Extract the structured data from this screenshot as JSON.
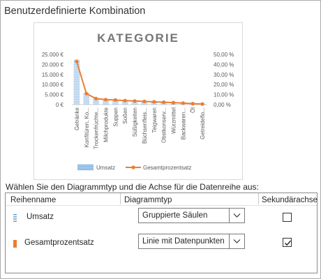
{
  "dialog": {
    "title": "Benutzerdefinierte Kombination",
    "prompt": "Wählen Sie den Diagrammtyp und die Achse für die Datenreihe aus:"
  },
  "table": {
    "headers": {
      "name": "Reihenname",
      "type": "Diagrammtyp",
      "secondary": "Sekundärachse"
    },
    "rows": [
      {
        "name": "Umsatz",
        "chart_type": "Gruppierte Säulen",
        "secondary_axis": false,
        "color": "#5b9bd5",
        "icon": "column-series-icon"
      },
      {
        "name": "Gesamtprozentsatz",
        "chart_type": "Linie mit Datenpunkten",
        "secondary_axis": true,
        "color": "#ed7d31",
        "icon": "line-series-icon"
      }
    ]
  },
  "chart_data": {
    "type": "bar",
    "title": "KATEGORIE",
    "categories": [
      "Getränke",
      "Konfitüren, Ko...",
      "Trockenfrüchte...",
      "Milchprodukte",
      "Suppen",
      "Soßen",
      "Süßigkeiten",
      "Büchsenfleis...",
      "Teigwaren",
      "Obstkonserv...",
      "Würzmittel",
      "Backwaren...",
      "Öl",
      "Getreideflo..."
    ],
    "series": [
      {
        "name": "Umsatz",
        "kind": "column",
        "axis": "primary",
        "color": "#5b9bd5",
        "values": [
          22400,
          5800,
          3200,
          2600,
          2400,
          2100,
          1900,
          1700,
          1500,
          1300,
          1100,
          800,
          500,
          300
        ]
      },
      {
        "name": "Gesamtprozentsatz",
        "kind": "line-markers",
        "axis": "secondary",
        "color": "#ed7d31",
        "values": [
          43.0,
          11.0,
          6.0,
          5.0,
          4.6,
          4.0,
          3.6,
          3.2,
          2.8,
          2.4,
          2.0,
          1.5,
          1.0,
          0.6
        ]
      }
    ],
    "y_left": {
      "ylim": [
        0,
        25000
      ],
      "ticks": [
        0,
        5000,
        10000,
        15000,
        20000,
        25000
      ],
      "tick_labels": [
        "0 €",
        "5.000 €",
        "10.000 €",
        "15.000 €",
        "20.000 €",
        "25.000 €"
      ]
    },
    "y_right": {
      "ylim": [
        0,
        50
      ],
      "ticks": [
        0,
        10,
        20,
        30,
        40,
        50
      ],
      "tick_labels": [
        "0,00 %",
        "10,00 %",
        "20,00 %",
        "30,00 %",
        "40,00 %",
        "50,00 %"
      ]
    },
    "grid": false,
    "legend": {
      "position": "bottom",
      "entries": [
        "Umsatz",
        "Gesamtprozentsatz"
      ]
    }
  }
}
